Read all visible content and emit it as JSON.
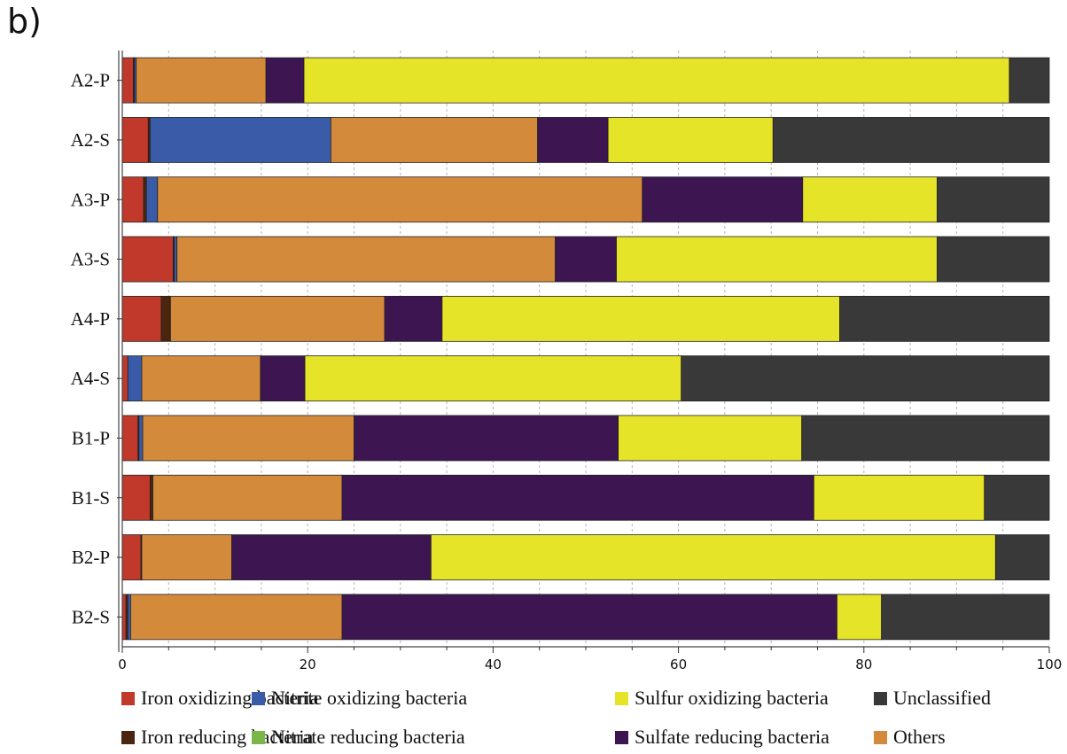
{
  "panel_label": "b)",
  "chart_data": {
    "type": "bar",
    "orientation": "horizontal",
    "stacked": true,
    "xlim": [
      0,
      100
    ],
    "x_ticks": [
      0,
      20,
      40,
      60,
      80,
      100
    ],
    "x_tick_labels": [
      "0",
      "20",
      "40",
      "60",
      "80",
      "100"
    ],
    "grid": "vertical dashed",
    "legend_position": "bottom",
    "categories": [
      "A2-P",
      "A2-S",
      "A3-P",
      "A3-S",
      "A4-P",
      "A4-S",
      "B1-P",
      "B1-S",
      "B2-P",
      "B2-S"
    ],
    "series": [
      {
        "name": "Iron oxidizing bacteria",
        "color": "#c0392b",
        "values": [
          1.2,
          2.8,
          2.3,
          5.5,
          4.2,
          0.6,
          1.7,
          3.0,
          2.0,
          0.4
        ]
      },
      {
        "name": "Iron reducing bacteria",
        "color": "#4a2510",
        "values": [
          0.1,
          0.2,
          0.3,
          0.1,
          1.0,
          0.0,
          0.1,
          0.3,
          0.1,
          0.2
        ]
      },
      {
        "name": "Nitrite oxidizing bacteria",
        "color": "#3a5ca8",
        "values": [
          0.2,
          19.5,
          1.2,
          0.3,
          0.0,
          1.5,
          0.4,
          0.0,
          0.0,
          0.3
        ]
      },
      {
        "name": "Nitrate reducing bacteria",
        "color": "#7ab648",
        "values": [
          0.0,
          0.0,
          0.0,
          0.0,
          0.0,
          0.0,
          0.0,
          0.0,
          0.0,
          0.0
        ]
      },
      {
        "name": "Others",
        "color": "#d48a3b",
        "values": [
          14.0,
          22.3,
          52.3,
          40.8,
          23.1,
          12.8,
          22.8,
          20.4,
          9.7,
          22.8
        ]
      },
      {
        "name": "Sulfate reducing bacteria",
        "color": "#3d1550",
        "values": [
          4.1,
          7.6,
          17.3,
          6.6,
          6.2,
          4.8,
          28.5,
          50.9,
          21.5,
          53.4
        ]
      },
      {
        "name": "Sulfur oxidizing bacteria",
        "color": "#e6e428",
        "values": [
          76.1,
          17.8,
          14.5,
          34.6,
          42.9,
          40.6,
          19.8,
          18.4,
          60.9,
          4.8
        ]
      },
      {
        "name": "Unclassified",
        "color": "#393939",
        "values": [
          4.3,
          29.8,
          12.1,
          12.1,
          22.6,
          39.7,
          26.7,
          7.0,
          5.8,
          18.1
        ]
      }
    ],
    "legend_order": [
      "Iron oxidizing bacteria",
      "Nitrite oxidizing bacteria",
      "Sulfur oxidizing bacteria",
      "Unclassified",
      "Iron reducing bacteria",
      "Nitrate reducing bacteria",
      "Sulfate reducing bacteria",
      "Others"
    ]
  }
}
